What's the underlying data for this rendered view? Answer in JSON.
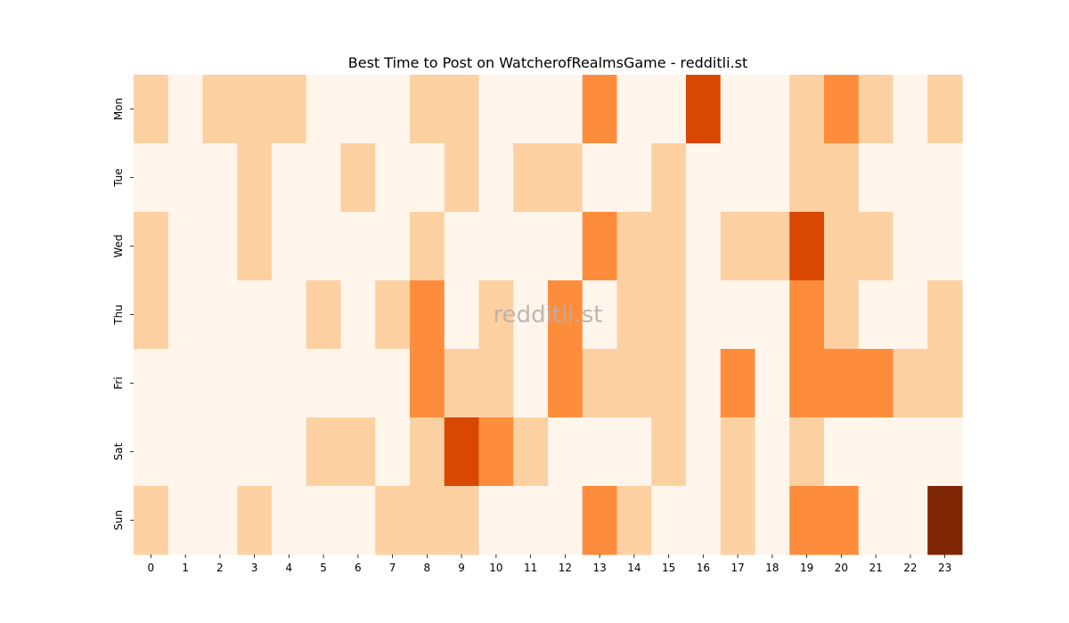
{
  "chart_data": {
    "type": "heatmap",
    "title": "Best Time to Post on WatcherofRealmsGame - redditli.st",
    "watermark": "redditli.st",
    "xlabel": "",
    "ylabel": "",
    "x_categories": [
      "0",
      "1",
      "2",
      "3",
      "4",
      "5",
      "6",
      "7",
      "8",
      "9",
      "10",
      "11",
      "12",
      "13",
      "14",
      "15",
      "16",
      "17",
      "18",
      "19",
      "20",
      "21",
      "22",
      "23"
    ],
    "y_categories": [
      "Mon",
      "Tue",
      "Wed",
      "Thu",
      "Fri",
      "Sat",
      "Sun"
    ],
    "values": [
      [
        1,
        0,
        1,
        1,
        1,
        0,
        0,
        0,
        1,
        1,
        0,
        0,
        0,
        2,
        0,
        0,
        3,
        0,
        0,
        1,
        2,
        1,
        0,
        1
      ],
      [
        0,
        0,
        0,
        1,
        0,
        0,
        1,
        0,
        0,
        1,
        0,
        1,
        1,
        0,
        0,
        1,
        0,
        0,
        0,
        1,
        1,
        0,
        0,
        0
      ],
      [
        1,
        0,
        0,
        1,
        0,
        0,
        0,
        0,
        1,
        0,
        0,
        0,
        0,
        2,
        1,
        1,
        0,
        1,
        1,
        3,
        1,
        1,
        0,
        0
      ],
      [
        1,
        0,
        0,
        0,
        0,
        1,
        0,
        1,
        2,
        0,
        1,
        0,
        2,
        0,
        1,
        1,
        0,
        0,
        0,
        2,
        1,
        0,
        0,
        1
      ],
      [
        0,
        0,
        0,
        0,
        0,
        0,
        0,
        0,
        2,
        1,
        1,
        0,
        2,
        1,
        1,
        1,
        0,
        2,
        0,
        2,
        2,
        2,
        1,
        1
      ],
      [
        0,
        0,
        0,
        0,
        0,
        1,
        1,
        0,
        1,
        3,
        2,
        1,
        0,
        0,
        0,
        1,
        0,
        1,
        0,
        1,
        0,
        0,
        0,
        0
      ],
      [
        1,
        0,
        0,
        1,
        0,
        0,
        0,
        1,
        1,
        1,
        0,
        0,
        0,
        2,
        1,
        0,
        0,
        1,
        0,
        2,
        2,
        0,
        0,
        4
      ]
    ],
    "colormap": [
      "#fff5eb",
      "#fdd0a2",
      "#fd8d3c",
      "#d94801",
      "#7f2704"
    ],
    "grid": false,
    "legend": "none"
  }
}
